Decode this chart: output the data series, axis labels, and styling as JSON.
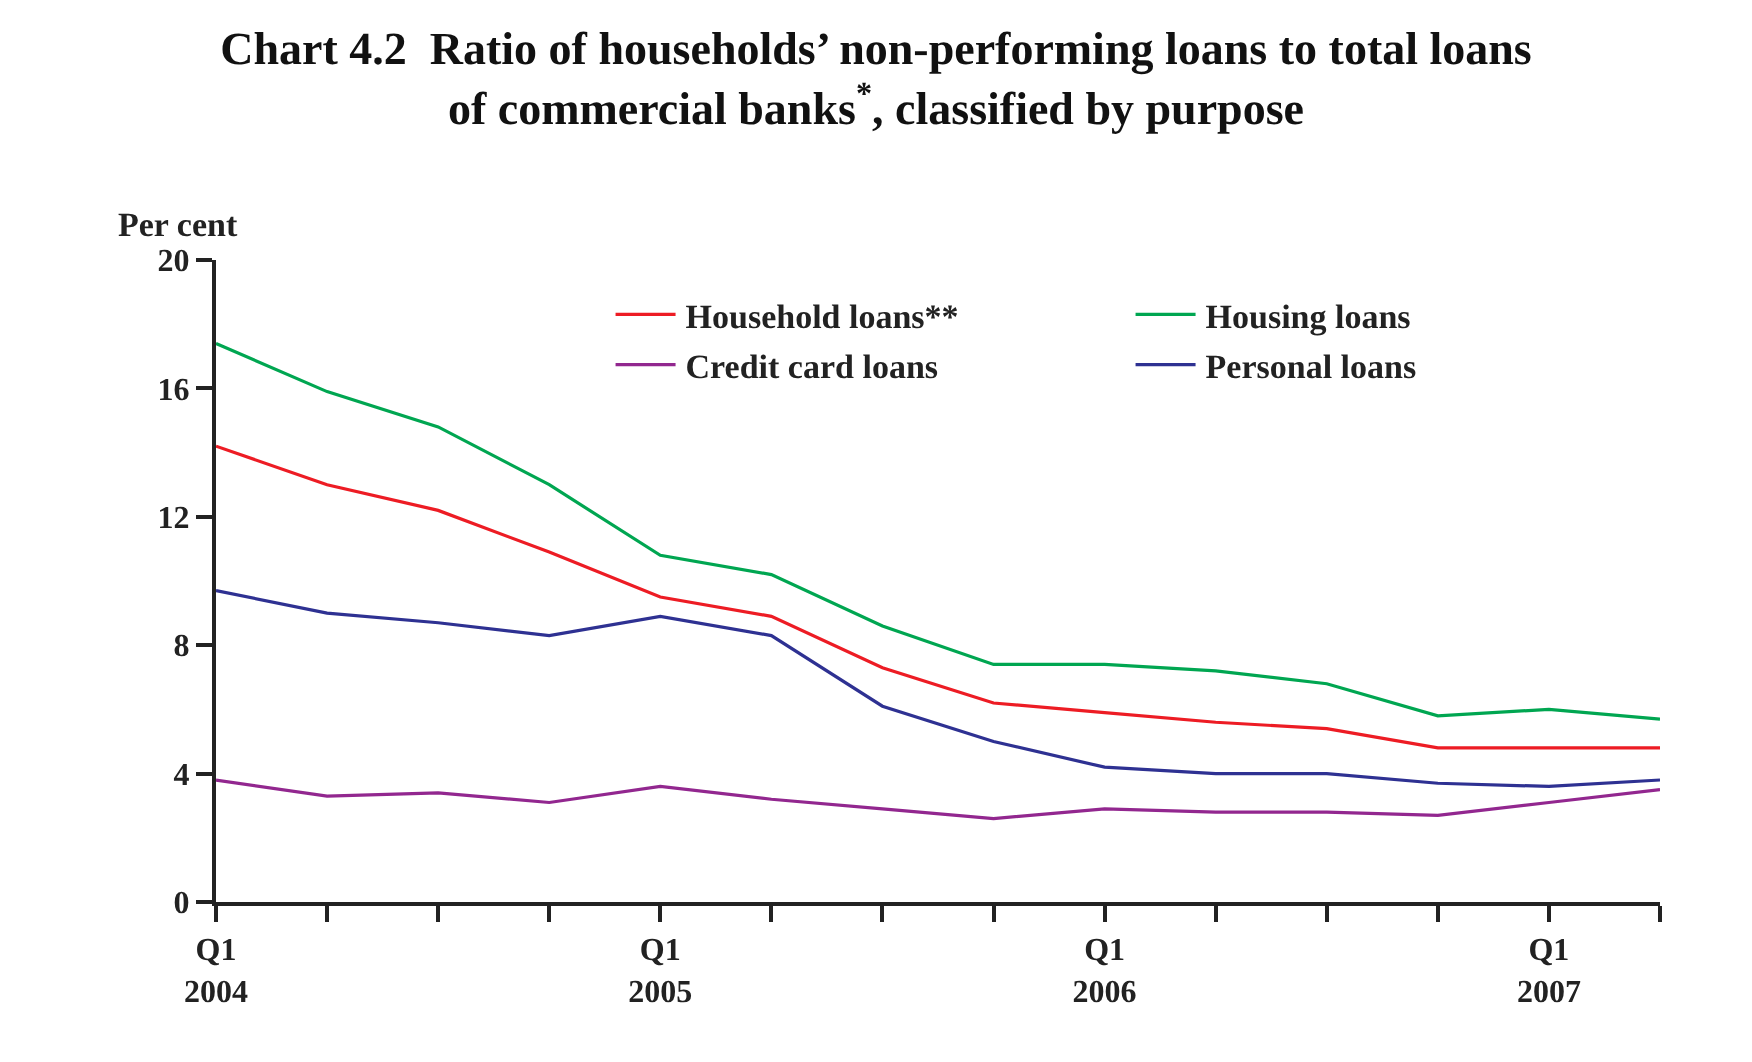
{
  "chart_data": {
    "type": "line",
    "title": "Chart 4.2  Ratio of households’ non-performing loans to total loans\nof commercial banks$^{*}$, classified by purpose",
    "ylabel": "Per cent",
    "categories": [
      "Q1\n2004",
      null,
      null,
      null,
      "Q1\n2005",
      null,
      null,
      null,
      "Q1\n2006",
      null,
      null,
      null,
      "Q1\n2007",
      null
    ],
    "series": [
      {
        "name": "Household loans**",
        "color": "#ed1c24",
        "values": [
          14.2,
          13.0,
          12.2,
          10.9,
          9.5,
          8.9,
          7.3,
          6.2,
          5.9,
          5.6,
          5.4,
          4.8,
          4.8,
          4.8
        ]
      },
      {
        "name": "Housing loans",
        "color": "#00a651",
        "values": [
          17.4,
          15.9,
          14.8,
          13.0,
          10.8,
          10.2,
          8.6,
          7.4,
          7.4,
          7.2,
          6.8,
          5.8,
          6.0,
          5.7
        ]
      },
      {
        "name": "Credit card loans",
        "color": "#92278f",
        "values": [
          3.8,
          3.3,
          3.4,
          3.1,
          3.6,
          3.2,
          2.9,
          2.6,
          2.9,
          2.8,
          2.8,
          2.7,
          3.1,
          3.5
        ]
      },
      {
        "name": "Personal loans",
        "color": "#2e3192",
        "values": [
          9.7,
          9.0,
          8.7,
          8.3,
          8.9,
          8.3,
          6.1,
          5.0,
          4.2,
          4.0,
          4.0,
          3.7,
          3.6,
          3.8
        ]
      }
    ],
    "ylim": [
      0,
      20
    ],
    "yticks": [
      0,
      4,
      8,
      12,
      16,
      20
    ],
    "legend": "top right",
    "marker": "none",
    "line_style": "solid"
  }
}
